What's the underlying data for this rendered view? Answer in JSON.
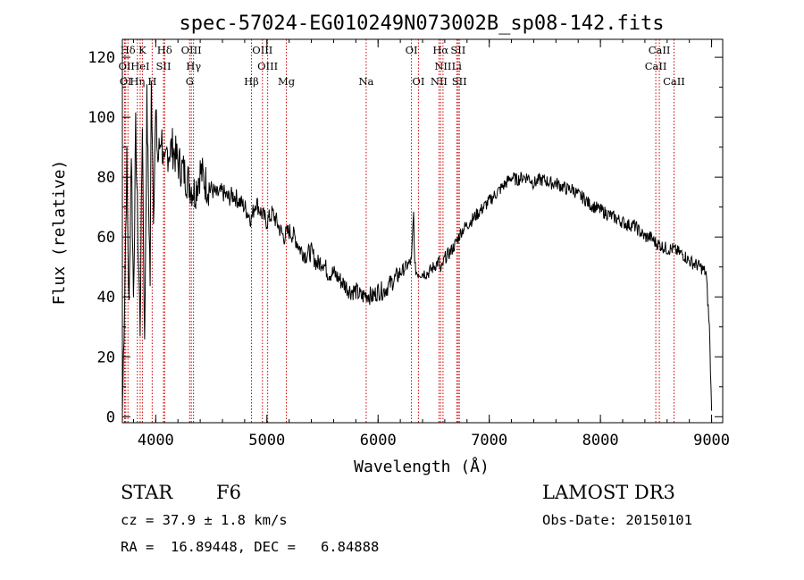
{
  "chart_data": {
    "type": "line",
    "title": "spec-57024-EG010249N073002B_sp08-142.fits",
    "xlabel": "Wavelength (Å)",
    "ylabel": "Flux (relative)",
    "xlim": [
      3700,
      9100
    ],
    "ylim": [
      -2,
      126
    ],
    "xticks": [
      4000,
      5000,
      6000,
      7000,
      8000,
      9000
    ],
    "yticks": [
      0,
      20,
      40,
      60,
      80,
      100,
      120
    ],
    "grid": false,
    "line_color": "#000000",
    "marker_color": "#cc0000",
    "series": [
      {
        "x": [
          3700,
          3720,
          3740,
          3760,
          3780,
          3800,
          3820,
          3840,
          3860,
          3880,
          3900,
          3920,
          3940,
          3950,
          3960,
          3970,
          3980,
          4000,
          4020,
          4050,
          4080,
          4100,
          4150,
          4200,
          4250,
          4300,
          4350,
          4400,
          4450,
          4500,
          4550,
          4600,
          4650,
          4700,
          4750,
          4800,
          4860,
          4900,
          4950,
          5000,
          5050,
          5100,
          5150,
          5200,
          5250,
          5300,
          5350,
          5400,
          5450,
          5500,
          5550,
          5600,
          5650,
          5700,
          5750,
          5800,
          5850,
          5900,
          5950,
          6000,
          6050,
          6100,
          6150,
          6200,
          6250,
          6300,
          6320,
          6330,
          6350,
          6400,
          6450,
          6500,
          6550,
          6563,
          6600,
          6650,
          6700,
          6750,
          6800,
          6850,
          6900,
          6950,
          7000,
          7050,
          7100,
          7150,
          7200,
          7250,
          7300,
          7350,
          7400,
          7450,
          7500,
          7550,
          7600,
          7650,
          7700,
          7750,
          7800,
          7850,
          7900,
          7950,
          8000,
          8050,
          8100,
          8150,
          8200,
          8250,
          8300,
          8350,
          8400,
          8450,
          8500,
          8550,
          8600,
          8650,
          8700,
          8750,
          8800,
          8850,
          8900,
          8950,
          8980,
          9000
        ],
        "y": [
          1,
          40,
          85,
          35,
          90,
          40,
          95,
          60,
          30,
          100,
          22,
          105,
          65,
          45,
          110,
          95,
          70,
          100,
          85,
          95,
          80,
          88,
          90,
          85,
          82,
          78,
          75,
          82,
          78,
          76,
          74,
          75,
          73,
          74,
          72,
          70,
          66,
          72,
          68,
          65,
          68,
          64,
          60,
          62,
          60,
          56,
          54,
          55,
          51,
          52,
          48,
          48,
          46,
          44,
          42,
          42,
          40,
          41,
          40,
          42,
          42,
          44,
          46,
          48,
          50,
          52,
          68,
          50,
          48,
          48,
          48,
          50,
          52,
          48,
          53,
          55,
          58,
          62,
          64,
          66,
          68,
          70,
          72,
          74,
          76,
          78,
          80,
          79,
          80,
          80,
          78,
          79,
          79,
          78,
          78,
          77,
          76,
          76,
          74,
          73,
          71,
          70,
          69,
          68,
          67,
          66,
          65,
          64,
          64,
          62,
          60,
          60,
          58,
          57,
          56,
          56,
          55,
          54,
          52,
          51,
          50,
          48,
          30,
          2
        ]
      }
    ],
    "spectral_lines": [
      {
        "label": "Hδ",
        "x": 3750,
        "row": 0
      },
      {
        "label": "K",
        "x": 3880,
        "row": 0
      },
      {
        "label": "Hδ",
        "x": 4080,
        "row": 0
      },
      {
        "label": "OIII",
        "x": 4320,
        "row": 0
      },
      {
        "label": "OIII",
        "x": 4960,
        "row": 0
      },
      {
        "label": "OI",
        "x": 6300,
        "row": 0
      },
      {
        "label": "Hα",
        "x": 6563,
        "row": 0
      },
      {
        "label": "SII",
        "x": 6720,
        "row": 0
      },
      {
        "label": "CaII",
        "x": 8530,
        "row": 0
      },
      {
        "label": "OI",
        "x": 3720,
        "row": 1
      },
      {
        "label": "HeI",
        "x": 3860,
        "row": 1
      },
      {
        "label": "SII",
        "x": 4070,
        "row": 1
      },
      {
        "label": "Hγ",
        "x": 4340,
        "row": 1
      },
      {
        "label": "OIII",
        "x": 5007,
        "row": 1
      },
      {
        "label": "NII",
        "x": 6584,
        "row": 1
      },
      {
        "label": "Li",
        "x": 6708,
        "row": 1
      },
      {
        "label": "CaII",
        "x": 8498,
        "row": 1
      },
      {
        "label": "OI",
        "x": 3730,
        "row": 2
      },
      {
        "label": "Hη",
        "x": 3835,
        "row": 2
      },
      {
        "label": "H",
        "x": 3968,
        "row": 2
      },
      {
        "label": "G",
        "x": 4305,
        "row": 2
      },
      {
        "label": "Hβ",
        "x": 4861,
        "row": 2
      },
      {
        "label": "Mg",
        "x": 5175,
        "row": 2
      },
      {
        "label": "Na",
        "x": 5893,
        "row": 2
      },
      {
        "label": "OI",
        "x": 6363,
        "row": 2
      },
      {
        "label": "NII",
        "x": 6548,
        "row": 2
      },
      {
        "label": "SII",
        "x": 6731,
        "row": 2
      },
      {
        "label": "CaII",
        "x": 8662,
        "row": 2
      }
    ]
  },
  "info": {
    "star_type": "STAR",
    "subclass": "F6",
    "cz": "cz = 37.9 ± 1.8 km/s",
    "radec": "RA =  16.89448, DEC =   6.84888",
    "survey": "LAMOST DR3",
    "obs_date": "Obs-Date: 20150101"
  }
}
